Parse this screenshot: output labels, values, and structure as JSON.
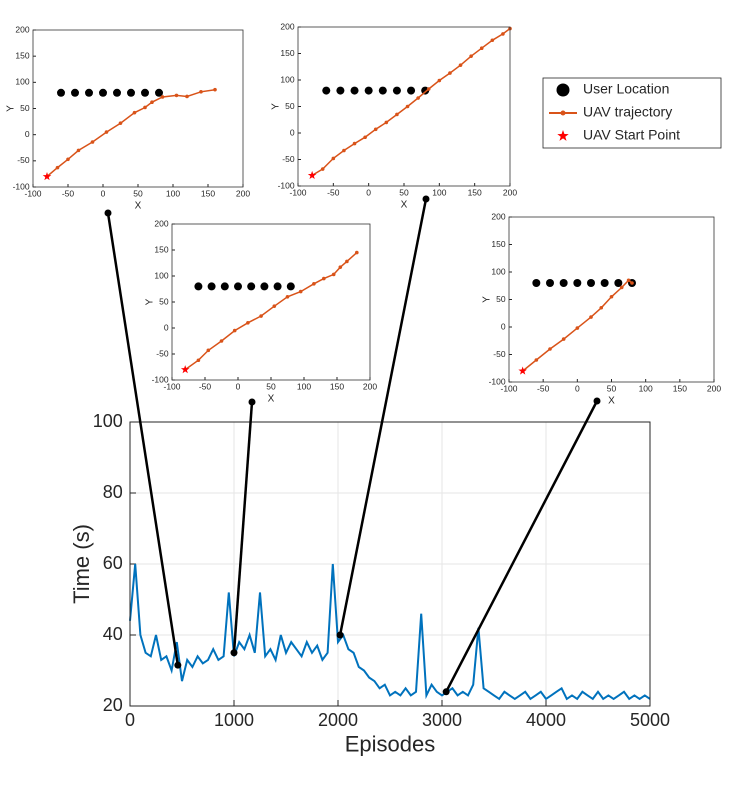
{
  "chart_data": [
    {
      "type": "line",
      "xlabel": "Episodes",
      "ylabel": "Time (s)",
      "xlim": [
        0,
        5000
      ],
      "ylim": [
        20,
        100
      ],
      "xticks": [
        0,
        1000,
        2000,
        3000,
        4000,
        5000
      ],
      "yticks": [
        20,
        40,
        60,
        80,
        100
      ],
      "grid": true,
      "x": [
        0,
        50,
        100,
        150,
        200,
        250,
        300,
        350,
        400,
        450,
        500,
        550,
        600,
        650,
        700,
        750,
        800,
        850,
        900,
        950,
        1000,
        1050,
        1100,
        1150,
        1200,
        1250,
        1300,
        1350,
        1400,
        1450,
        1500,
        1550,
        1600,
        1650,
        1700,
        1750,
        1800,
        1850,
        1900,
        1950,
        2000,
        2050,
        2100,
        2150,
        2200,
        2250,
        2300,
        2350,
        2400,
        2450,
        2500,
        2550,
        2600,
        2650,
        2700,
        2750,
        2800,
        2850,
        2900,
        2950,
        3000,
        3050,
        3100,
        3150,
        3200,
        3250,
        3300,
        3350,
        3400,
        3450,
        3500,
        3550,
        3600,
        3650,
        3700,
        3750,
        3800,
        3850,
        3900,
        3950,
        4000,
        4050,
        4100,
        4150,
        4200,
        4250,
        4300,
        4350,
        4400,
        4450,
        4500,
        4550,
        4600,
        4650,
        4700,
        4750,
        4800,
        4850,
        4900,
        4950,
        5000
      ],
      "series": [
        {
          "color": "#0072bd",
          "values": [
            44,
            60,
            40,
            35,
            34,
            40,
            33,
            34,
            30,
            38,
            27,
            33,
            31,
            34,
            32,
            33,
            36,
            33,
            34,
            52,
            34,
            38,
            36,
            40,
            35,
            52,
            34,
            36,
            33,
            40,
            35,
            38,
            36,
            34,
            38,
            35,
            37,
            33,
            35,
            60,
            38,
            40,
            36,
            35,
            31,
            30,
            28,
            27,
            25,
            26,
            23,
            24,
            23,
            25,
            23,
            24,
            46,
            23,
            26,
            24,
            23,
            24,
            25,
            23,
            24,
            23,
            26,
            42,
            25,
            24,
            23,
            22,
            24,
            23,
            22,
            23,
            24,
            22,
            23,
            24,
            22,
            23,
            24,
            25,
            22,
            23,
            22,
            24,
            23,
            22,
            24,
            22,
            23,
            22,
            23,
            24,
            22,
            23,
            22,
            23,
            22
          ]
        }
      ],
      "annotations": [
        {
          "x": 460,
          "y": 31.5
        },
        {
          "x": 1000,
          "y": 35
        },
        {
          "x": 2020,
          "y": 40
        },
        {
          "x": 3040,
          "y": 24
        }
      ]
    },
    {
      "type": "scatter",
      "xlabel": "X",
      "ylabel": "Y",
      "xlim": [
        -100,
        200
      ],
      "ylim": [
        -100,
        200
      ],
      "xticks": [
        -100,
        -50,
        0,
        50,
        100,
        150,
        200
      ],
      "yticks": [
        -100,
        -50,
        0,
        50,
        100,
        150,
        200
      ],
      "legend": "upper right",
      "series": [
        {
          "name": "User Location",
          "color": "#000000",
          "marker": "circle",
          "x": [
            -60,
            -40,
            -20,
            0,
            20,
            40,
            60,
            80
          ],
          "y": [
            80,
            80,
            80,
            80,
            80,
            80,
            80,
            80
          ]
        },
        {
          "name": "UAV trajectory",
          "color": "#d95319",
          "marker": "dot",
          "line": true,
          "x": [
            -80,
            -65,
            -50,
            -35,
            -15,
            5,
            25,
            45,
            60,
            70,
            85,
            105,
            120,
            140,
            160
          ],
          "y": [
            -80,
            -63,
            -47,
            -30,
            -14,
            5,
            22,
            42,
            52,
            62,
            72,
            75,
            73,
            82,
            86
          ]
        },
        {
          "name": "UAV Start Point",
          "color": "#ff0000",
          "marker": "star",
          "x": [
            -80
          ],
          "y": [
            -80
          ]
        }
      ]
    },
    {
      "type": "scatter",
      "xlabel": "X",
      "ylabel": "Y",
      "xlim": [
        -100,
        200
      ],
      "ylim": [
        -100,
        200
      ],
      "xticks": [
        -100,
        -50,
        0,
        50,
        100,
        150,
        200
      ],
      "yticks": [
        -100,
        -50,
        0,
        50,
        100,
        150,
        200
      ],
      "series": [
        {
          "color": "#000000",
          "marker": "circle",
          "x": [
            -60,
            -40,
            -20,
            0,
            20,
            40,
            60,
            80
          ],
          "y": [
            80,
            80,
            80,
            80,
            80,
            80,
            80,
            80
          ]
        },
        {
          "color": "#d95319",
          "marker": "dot",
          "line": true,
          "x": [
            -80,
            -60,
            -45,
            -25,
            -5,
            15,
            35,
            55,
            75,
            95,
            115,
            130,
            145,
            155,
            165,
            180
          ],
          "y": [
            -80,
            -62,
            -43,
            -25,
            -5,
            10,
            23,
            42,
            60,
            70,
            85,
            95,
            103,
            117,
            128,
            145
          ]
        },
        {
          "color": "#ff0000",
          "marker": "star",
          "x": [
            -80
          ],
          "y": [
            -80
          ]
        }
      ]
    },
    {
      "type": "scatter",
      "xlabel": "X",
      "ylabel": "Y",
      "xlim": [
        -100,
        200
      ],
      "ylim": [
        -100,
        200
      ],
      "xticks": [
        -100,
        -50,
        0,
        50,
        100,
        150,
        200
      ],
      "yticks": [
        -100,
        -50,
        0,
        50,
        100,
        150,
        200
      ],
      "series": [
        {
          "color": "#000000",
          "marker": "circle",
          "x": [
            -60,
            -40,
            -20,
            0,
            20,
            40,
            60,
            80
          ],
          "y": [
            80,
            80,
            80,
            80,
            80,
            80,
            80,
            80
          ]
        },
        {
          "color": "#d95319",
          "marker": "dot",
          "line": true,
          "x": [
            -80,
            -65,
            -50,
            -35,
            -20,
            -5,
            10,
            25,
            40,
            55,
            70,
            85,
            100,
            115,
            130,
            145,
            160,
            175,
            190,
            200
          ],
          "y": [
            -80,
            -68,
            -48,
            -33,
            -20,
            -8,
            7,
            20,
            35,
            50,
            66,
            83,
            99,
            113,
            128,
            145,
            160,
            175,
            187,
            197
          ]
        },
        {
          "color": "#ff0000",
          "marker": "star",
          "x": [
            -80
          ],
          "y": [
            -80
          ]
        }
      ]
    },
    {
      "type": "scatter",
      "xlabel": "X",
      "ylabel": "Y",
      "xlim": [
        -100,
        200
      ],
      "ylim": [
        -100,
        200
      ],
      "xticks": [
        -100,
        -50,
        0,
        50,
        100,
        150,
        200
      ],
      "yticks": [
        -100,
        -50,
        0,
        50,
        100,
        150,
        200
      ],
      "series": [
        {
          "color": "#000000",
          "marker": "circle",
          "x": [
            -60,
            -40,
            -20,
            0,
            20,
            40,
            60,
            80
          ],
          "y": [
            80,
            80,
            80,
            80,
            80,
            80,
            80,
            80
          ]
        },
        {
          "color": "#d95319",
          "marker": "dot",
          "line": true,
          "x": [
            -80,
            -60,
            -40,
            -20,
            0,
            20,
            35,
            50,
            65,
            75,
            80
          ],
          "y": [
            -80,
            -60,
            -40,
            -22,
            -2,
            18,
            35,
            55,
            72,
            85,
            80
          ]
        },
        {
          "color": "#ff0000",
          "marker": "star",
          "x": [
            -80
          ],
          "y": [
            -80
          ]
        }
      ]
    }
  ]
}
